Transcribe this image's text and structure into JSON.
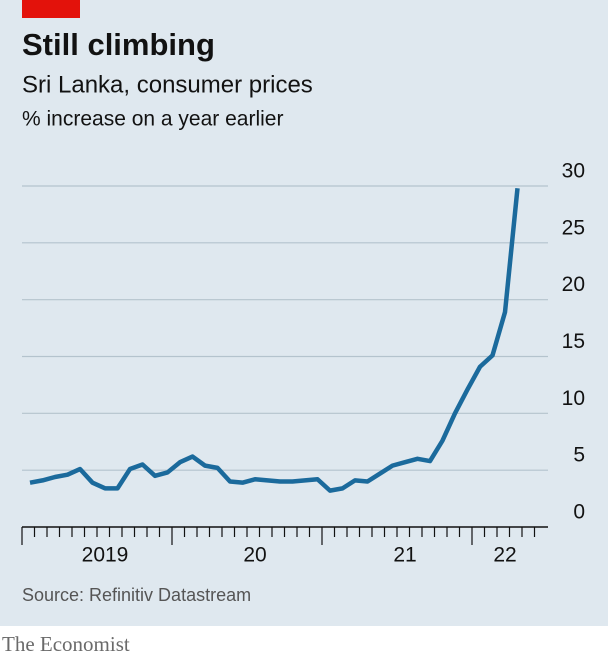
{
  "chart_data": {
    "type": "line",
    "title": "Still climbing",
    "subtitle": "Sri Lanka, consumer prices",
    "axis_label": "% increase on a year earlier",
    "source": "Source: Refinitiv Datastream",
    "categories": [
      null,
      null,
      null,
      null,
      null,
      null,
      "2019",
      null,
      null,
      null,
      null,
      null,
      null,
      null,
      null,
      null,
      null,
      null,
      "20",
      null,
      null,
      null,
      null,
      null,
      null,
      null,
      null,
      null,
      null,
      null,
      "21",
      null,
      null,
      null,
      null,
      null,
      null,
      null,
      "22",
      null,
      null
    ],
    "series": [
      {
        "name": "Consumer prices",
        "color": "#1b6a9c",
        "values": [
          3.9,
          4.1,
          4.4,
          4.6,
          5.1,
          3.9,
          3.4,
          3.4,
          5.1,
          5.5,
          4.5,
          4.8,
          5.7,
          6.2,
          5.4,
          5.2,
          4.0,
          3.9,
          4.2,
          4.1,
          4.0,
          4.0,
          4.1,
          4.2,
          3.2,
          3.4,
          4.1,
          4.0,
          4.7,
          5.4,
          5.7,
          6.0,
          5.8,
          7.6,
          10.0,
          12.1,
          14.1,
          15.1,
          18.9,
          29.8,
          null
        ]
      }
    ],
    "ylim": [
      0,
      30
    ],
    "yticks": [
      0,
      5,
      10,
      15,
      20,
      25,
      30
    ],
    "grid": true
  },
  "footer": "The Economist"
}
